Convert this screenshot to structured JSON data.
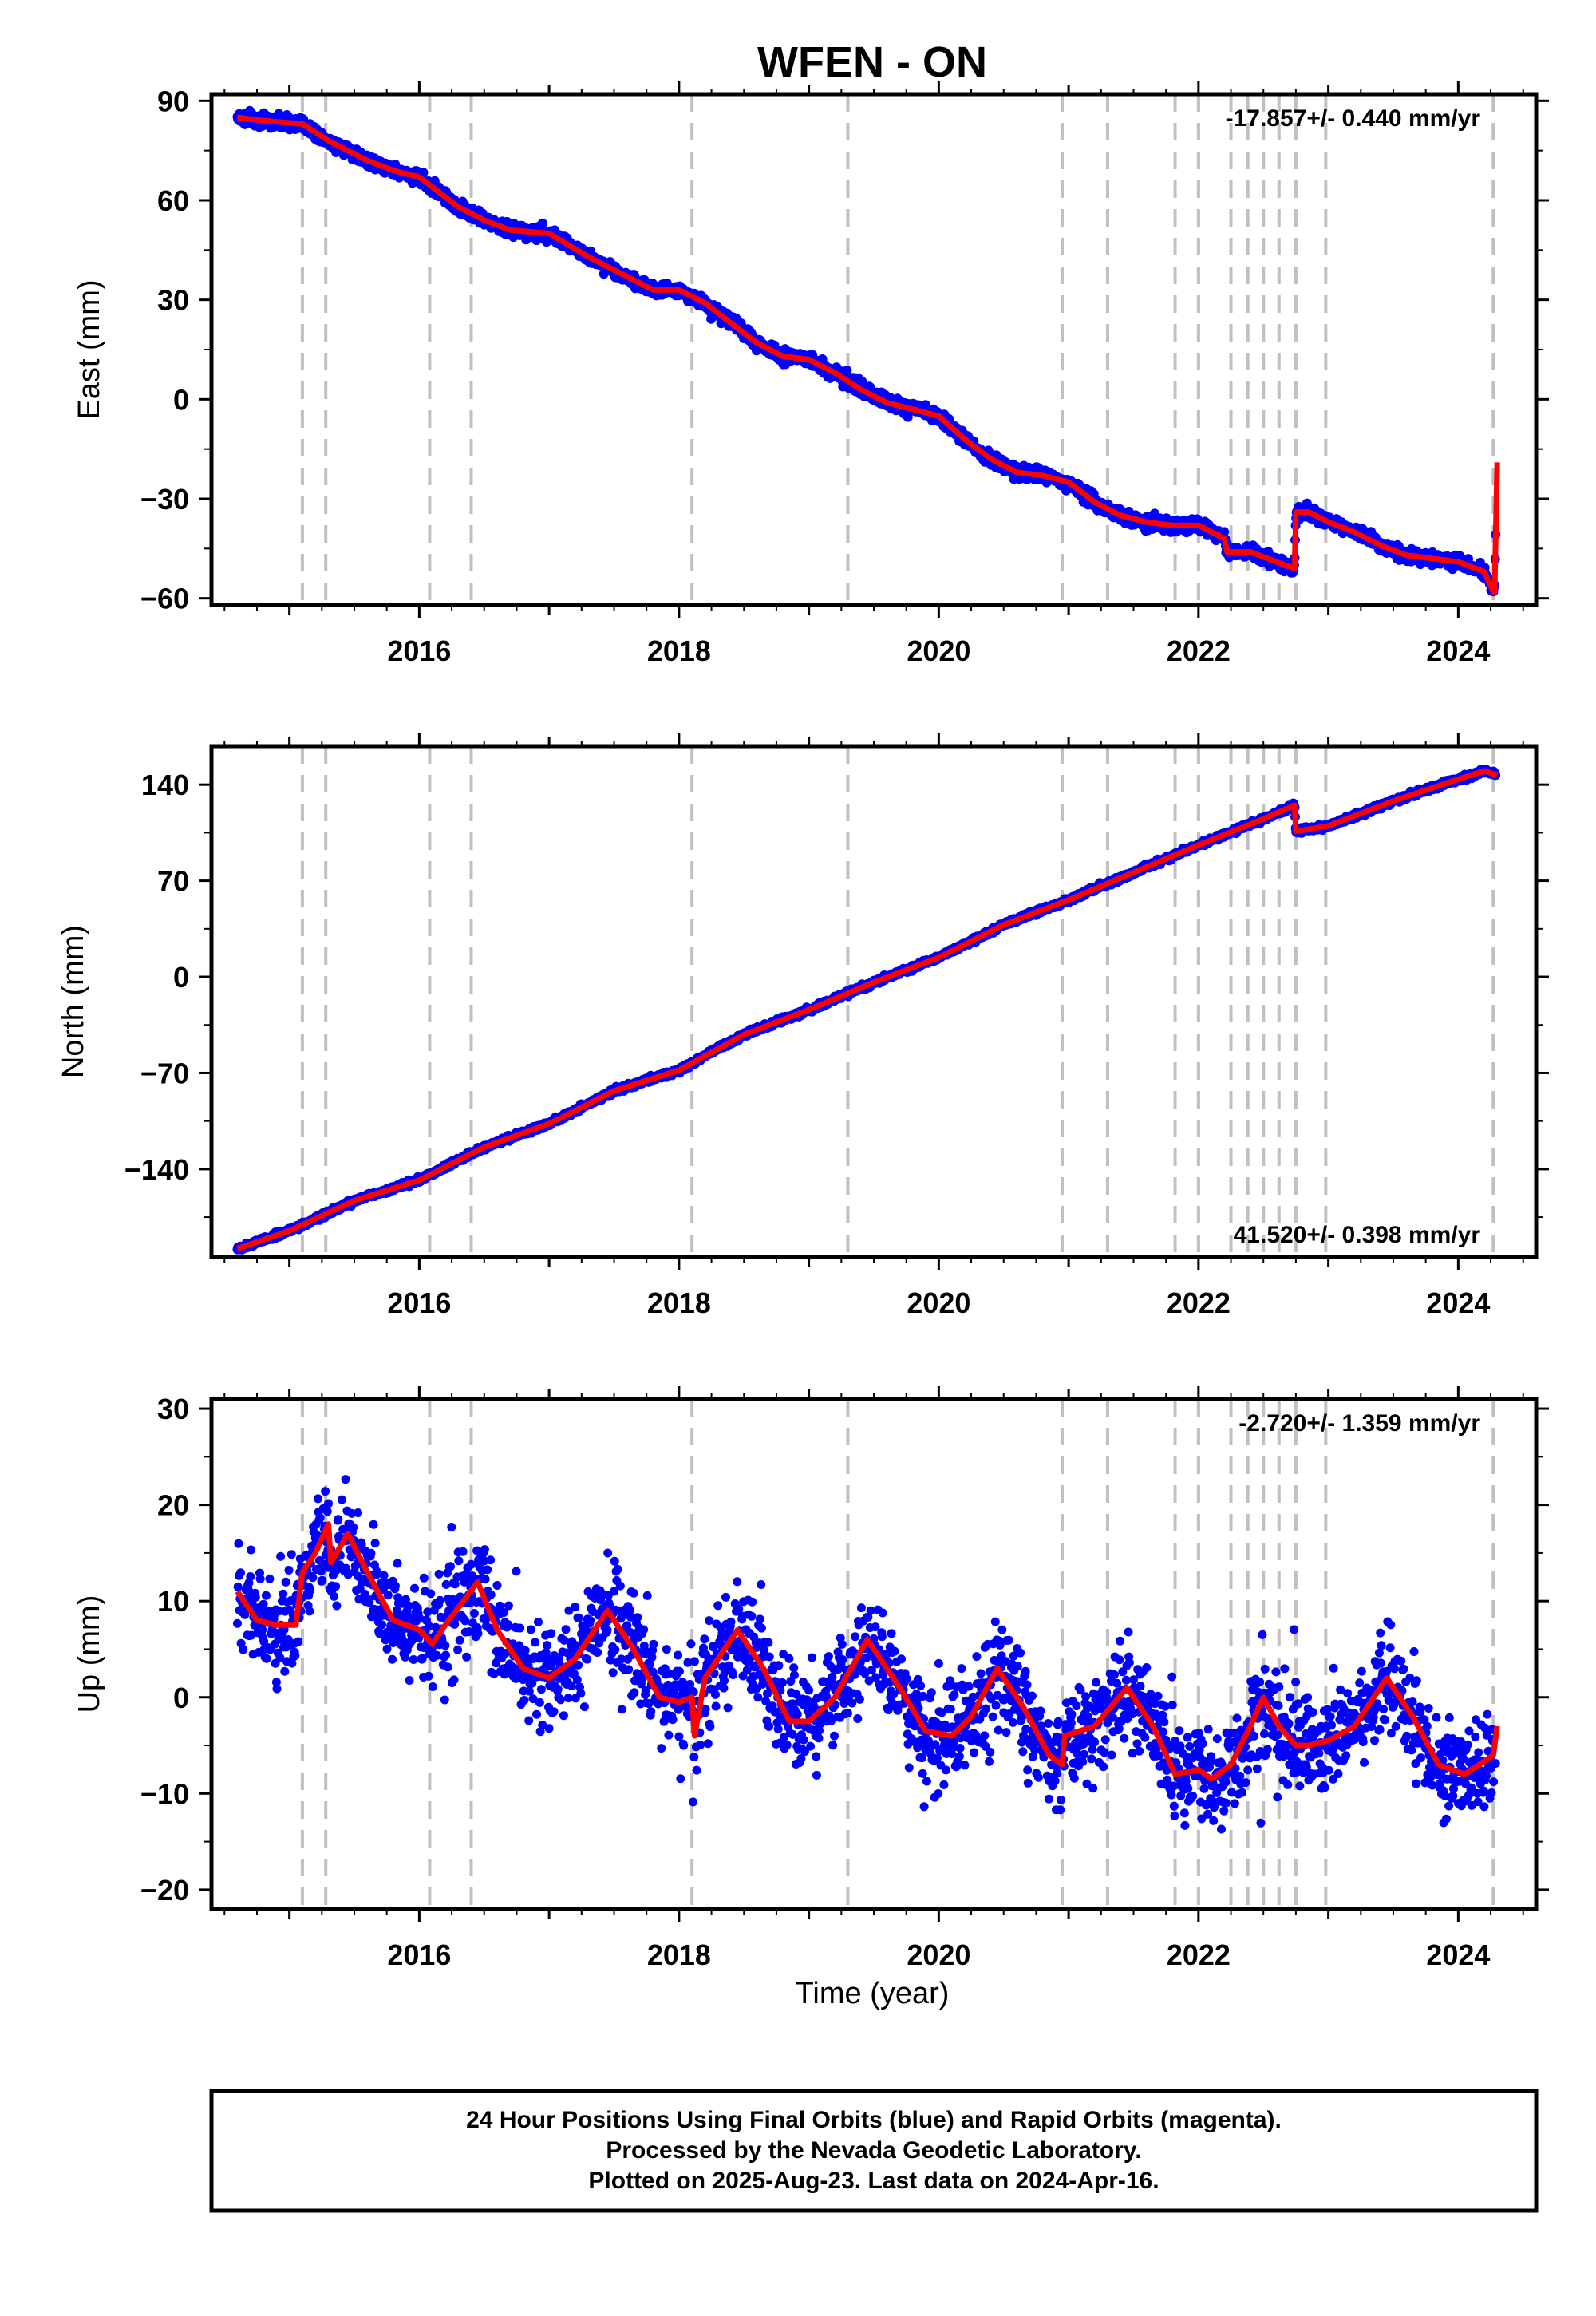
{
  "title": "WFEN - ON",
  "xlabel": "Time (year)",
  "footer": {
    "line1": "24 Hour Positions Using Final Orbits (blue) and Rapid Orbits (magenta).",
    "line2": "Processed by the Nevada Geodetic Laboratory.",
    "line3": "Plotted on 2025-Aug-23. Last data on 2024-Apr-16."
  },
  "colors": {
    "final_orbits": "#0000ff",
    "model": "#ff0000",
    "event_lines": "#c0c0c0",
    "frame": "#000000"
  },
  "chart_data": [
    {
      "type": "scatter",
      "component": "east",
      "ylabel": "East (mm)",
      "rate_label": "-17.857+/- 0.440 mm/yr",
      "xlim": [
        2014.4,
        2024.6
      ],
      "ylim": [
        -62,
        92
      ],
      "yticks": [
        90,
        60,
        30,
        0,
        -30,
        -60
      ],
      "ytick_labels": [
        "90",
        "60",
        "30",
        "0",
        "−30",
        "−60"
      ],
      "xticks": [
        2016,
        2018,
        2020,
        2022,
        2024
      ],
      "xtick_labels": [
        "2016",
        "2018",
        "2020",
        "2022",
        "2024"
      ],
      "event_lines_x": [
        2015.1,
        2015.28,
        2016.08,
        2016.4,
        2018.1,
        2019.3,
        2020.95,
        2021.3,
        2021.82,
        2022.0,
        2022.25,
        2022.38,
        2022.5,
        2022.62,
        2022.75,
        2022.98,
        2024.27
      ],
      "series": [
        {
          "kind": "model",
          "x": [
            2014.6,
            2014.8,
            2015.1,
            2015.3,
            2015.6,
            2015.8,
            2016.0,
            2016.1,
            2016.3,
            2016.5,
            2016.7,
            2017.0,
            2017.3,
            2017.6,
            2017.8,
            2018.0,
            2018.2,
            2018.4,
            2018.6,
            2018.8,
            2019.0,
            2019.2,
            2019.4,
            2019.6,
            2019.8,
            2020.0,
            2020.2,
            2020.4,
            2020.6,
            2020.8,
            2021.0,
            2021.2,
            2021.4,
            2021.6,
            2021.8,
            2022.0,
            2022.2,
            2022.22,
            2022.4,
            2022.6,
            2022.74,
            2022.75,
            2022.85,
            2023.0,
            2023.2,
            2023.4,
            2023.6,
            2023.8,
            2024.0,
            2024.2,
            2024.27,
            2024.28,
            2024.3
          ],
          "y": [
            85,
            84,
            83,
            78,
            72,
            69,
            67,
            64,
            58,
            54,
            51,
            50,
            43,
            37,
            33,
            33,
            29,
            23,
            17,
            13,
            12,
            8,
            3,
            -1,
            -3,
            -5,
            -12,
            -18,
            -22,
            -23,
            -25,
            -31,
            -35,
            -37,
            -38,
            -38,
            -42,
            -46,
            -46,
            -49,
            -51,
            -34,
            -34,
            -37,
            -40,
            -44,
            -47,
            -48,
            -49,
            -52,
            -58,
            -58,
            -19
          ]
        }
      ]
    },
    {
      "type": "scatter",
      "component": "north",
      "ylabel": "North (mm)",
      "rate_label": "41.520+/- 0.398 mm/yr",
      "xlim": [
        2014.4,
        2024.6
      ],
      "ylim": [
        -204,
        168
      ],
      "yticks": [
        140,
        70,
        0,
        -70,
        -140
      ],
      "ytick_labels": [
        "140",
        "70",
        "0",
        "−70",
        "−140"
      ],
      "xticks": [
        2016,
        2018,
        2020,
        2022,
        2024
      ],
      "xtick_labels": [
        "2016",
        "2018",
        "2020",
        "2022",
        "2024"
      ],
      "event_lines_x": [
        2015.1,
        2015.28,
        2016.08,
        2016.4,
        2018.1,
        2019.3,
        2020.95,
        2021.3,
        2021.82,
        2022.0,
        2022.25,
        2022.38,
        2022.5,
        2022.62,
        2022.75,
        2022.98,
        2024.27
      ],
      "series": [
        {
          "kind": "model",
          "x": [
            2014.6,
            2015.0,
            2015.5,
            2016.0,
            2016.5,
            2017.0,
            2017.5,
            2018.0,
            2018.5,
            2019.0,
            2019.5,
            2020.0,
            2020.5,
            2021.0,
            2021.5,
            2022.0,
            2022.5,
            2022.74,
            2022.75,
            2023.0,
            2023.5,
            2024.0,
            2024.2,
            2024.3
          ],
          "y": [
            -198,
            -185,
            -163,
            -148,
            -124,
            -107,
            -83,
            -68,
            -42,
            -24,
            -4,
            14,
            38,
            56,
            76,
            96,
            115,
            125,
            106,
            110,
            128,
            144,
            150,
            147
          ]
        }
      ]
    },
    {
      "type": "scatter",
      "component": "up",
      "ylabel": "Up (mm)",
      "rate_label": "-2.720+/- 1.359 mm/yr",
      "xlim": [
        2014.4,
        2024.6
      ],
      "ylim": [
        -22,
        31
      ],
      "yticks": [
        30,
        20,
        10,
        0,
        -10,
        -20
      ],
      "ytick_labels": [
        "30",
        "20",
        "10",
        "0",
        "−10",
        "−20"
      ],
      "xticks": [
        2016,
        2018,
        2020,
        2022,
        2024
      ],
      "xtick_labels": [
        "2016",
        "2018",
        "2020",
        "2022",
        "2024"
      ],
      "event_lines_x": [
        2015.1,
        2015.28,
        2016.08,
        2016.4,
        2018.1,
        2019.3,
        2020.95,
        2021.3,
        2021.82,
        2022.0,
        2022.25,
        2022.38,
        2022.5,
        2022.62,
        2022.75,
        2022.98,
        2024.27
      ],
      "series": [
        {
          "kind": "model",
          "x": [
            2014.6,
            2014.75,
            2014.9,
            2015.05,
            2015.1,
            2015.2,
            2015.3,
            2015.32,
            2015.45,
            2015.6,
            2015.8,
            2016.0,
            2016.1,
            2016.2,
            2016.45,
            2016.6,
            2016.8,
            2017.0,
            2017.2,
            2017.45,
            2017.65,
            2017.85,
            2018.0,
            2018.1,
            2018.12,
            2018.2,
            2018.45,
            2018.65,
            2018.85,
            2019.0,
            2019.2,
            2019.45,
            2019.7,
            2019.9,
            2020.1,
            2020.25,
            2020.45,
            2020.65,
            2020.85,
            2020.95,
            2020.97,
            2021.2,
            2021.45,
            2021.65,
            2021.82,
            2022.0,
            2022.1,
            2022.25,
            2022.4,
            2022.5,
            2022.62,
            2022.75,
            2022.85,
            2023.0,
            2023.2,
            2023.45,
            2023.65,
            2023.85,
            2024.05,
            2024.27,
            2024.3
          ],
          "y": [
            11,
            8,
            7.5,
            7.5,
            13,
            15,
            18,
            14,
            17,
            13,
            8,
            7,
            5.5,
            7.5,
            12,
            7,
            3,
            2,
            4,
            9,
            5,
            0,
            -0.5,
            0,
            -4,
            2,
            7,
            3,
            -2.5,
            -2.5,
            0,
            6,
            1,
            -3.5,
            -4,
            -2,
            3,
            -1,
            -6,
            -7,
            -4,
            -3,
            1,
            -3,
            -8,
            -7.5,
            -8.5,
            -7,
            -3,
            0,
            -3,
            -5,
            -5,
            -4.5,
            -3,
            2,
            -2,
            -7,
            -8,
            -6,
            -3
          ]
        }
      ]
    }
  ]
}
